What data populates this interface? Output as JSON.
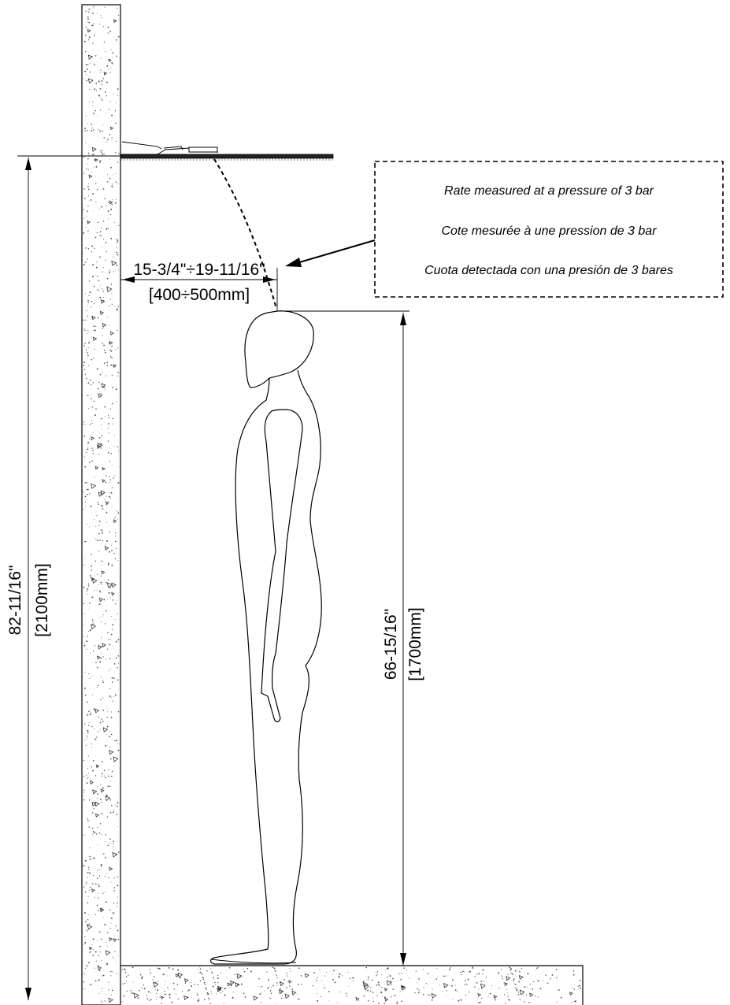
{
  "dimensions": {
    "head_clearance_in": "15-3/4\"÷19-11/16\"",
    "head_clearance_mm": "[400÷500mm]",
    "shower_height_in": "82-11/16\"",
    "shower_height_mm": "[2100mm]",
    "person_height_in": "66-15/16\"",
    "person_height_mm": "[1700mm]"
  },
  "note": {
    "line_en": "Rate measured at a pressure of 3 bar",
    "line_fr": "Cote mesurée à une pression de 3 bar",
    "line_es": "Cuota detectada con una presión de 3 bares"
  }
}
